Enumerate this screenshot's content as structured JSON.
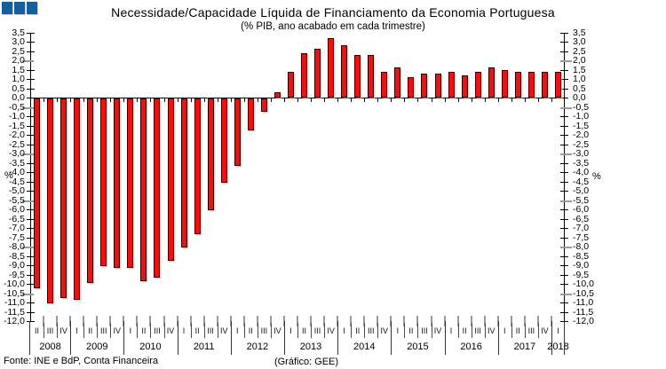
{
  "header": {
    "title": "Necessidade/Capacidade Líquida de Financiamento da Economia Portuguesa",
    "subtitle": "(% PIB, ano acabado em cada trimestre)"
  },
  "footer": {
    "source": "Fonte: INE e BdP, Conta Financeira",
    "credit": "(Gráfico: GEE)"
  },
  "colors": {
    "bar_fill": "#EC1212",
    "bar_border": "#2e0000",
    "logo_blue": "#14609F",
    "axis_black": "#000000",
    "gray_tick": "#9a9a9a"
  },
  "logo": {
    "squares": 3
  },
  "chart_data": {
    "type": "bar",
    "title": "Necessidade/Capacidade Líquida de Financiamento da Economia Portuguesa",
    "subtitle": "(% PIB, ano acabado em cada trimestre)",
    "ylabel": "%",
    "ylim": [
      -12.0,
      3.5
    ],
    "ytick_step": 0.5,
    "decimal_separator": ",",
    "grid": false,
    "legend": "none",
    "gray_tick_values": [
      2.0,
      -0.5,
      -3.0,
      -5.5,
      -8.0,
      -10.5
    ],
    "groups": [
      {
        "year": "2008",
        "quarters": [
          "II",
          "III",
          "IV"
        ],
        "values": [
          -10.2,
          -11.0,
          -10.7
        ]
      },
      {
        "year": "2009",
        "quarters": [
          "I",
          "II",
          "III",
          "IV"
        ],
        "values": [
          -10.8,
          -9.9,
          -9.0,
          -9.1
        ]
      },
      {
        "year": "2010",
        "quarters": [
          "I",
          "II",
          "III",
          "IV"
        ],
        "values": [
          -9.1,
          -9.8,
          -9.6,
          -8.7
        ]
      },
      {
        "year": "2011",
        "quarters": [
          "I",
          "II",
          "III",
          "IV"
        ],
        "values": [
          -8.0,
          -7.3,
          -6.0,
          -4.5
        ]
      },
      {
        "year": "2012",
        "quarters": [
          "I",
          "II",
          "III",
          "IV"
        ],
        "values": [
          -3.6,
          -1.7,
          -0.7,
          0.3
        ]
      },
      {
        "year": "2013",
        "quarters": [
          "I",
          "II",
          "III",
          "IV"
        ],
        "values": [
          1.4,
          2.4,
          2.6,
          3.2
        ]
      },
      {
        "year": "2014",
        "quarters": [
          "I",
          "II",
          "III",
          "IV"
        ],
        "values": [
          2.8,
          2.3,
          2.3,
          1.4
        ]
      },
      {
        "year": "2015",
        "quarters": [
          "I",
          "II",
          "III",
          "IV"
        ],
        "values": [
          1.6,
          1.1,
          1.3,
          1.3
        ]
      },
      {
        "year": "2016",
        "quarters": [
          "I",
          "II",
          "III",
          "IV"
        ],
        "values": [
          1.4,
          1.2,
          1.4,
          1.6
        ]
      },
      {
        "year": "2017",
        "quarters": [
          "I",
          "II",
          "III",
          "IV"
        ],
        "values": [
          1.5,
          1.4,
          1.4,
          1.4
        ]
      },
      {
        "year": "2018",
        "quarters": [
          "I"
        ],
        "values": [
          1.4
        ]
      }
    ]
  }
}
